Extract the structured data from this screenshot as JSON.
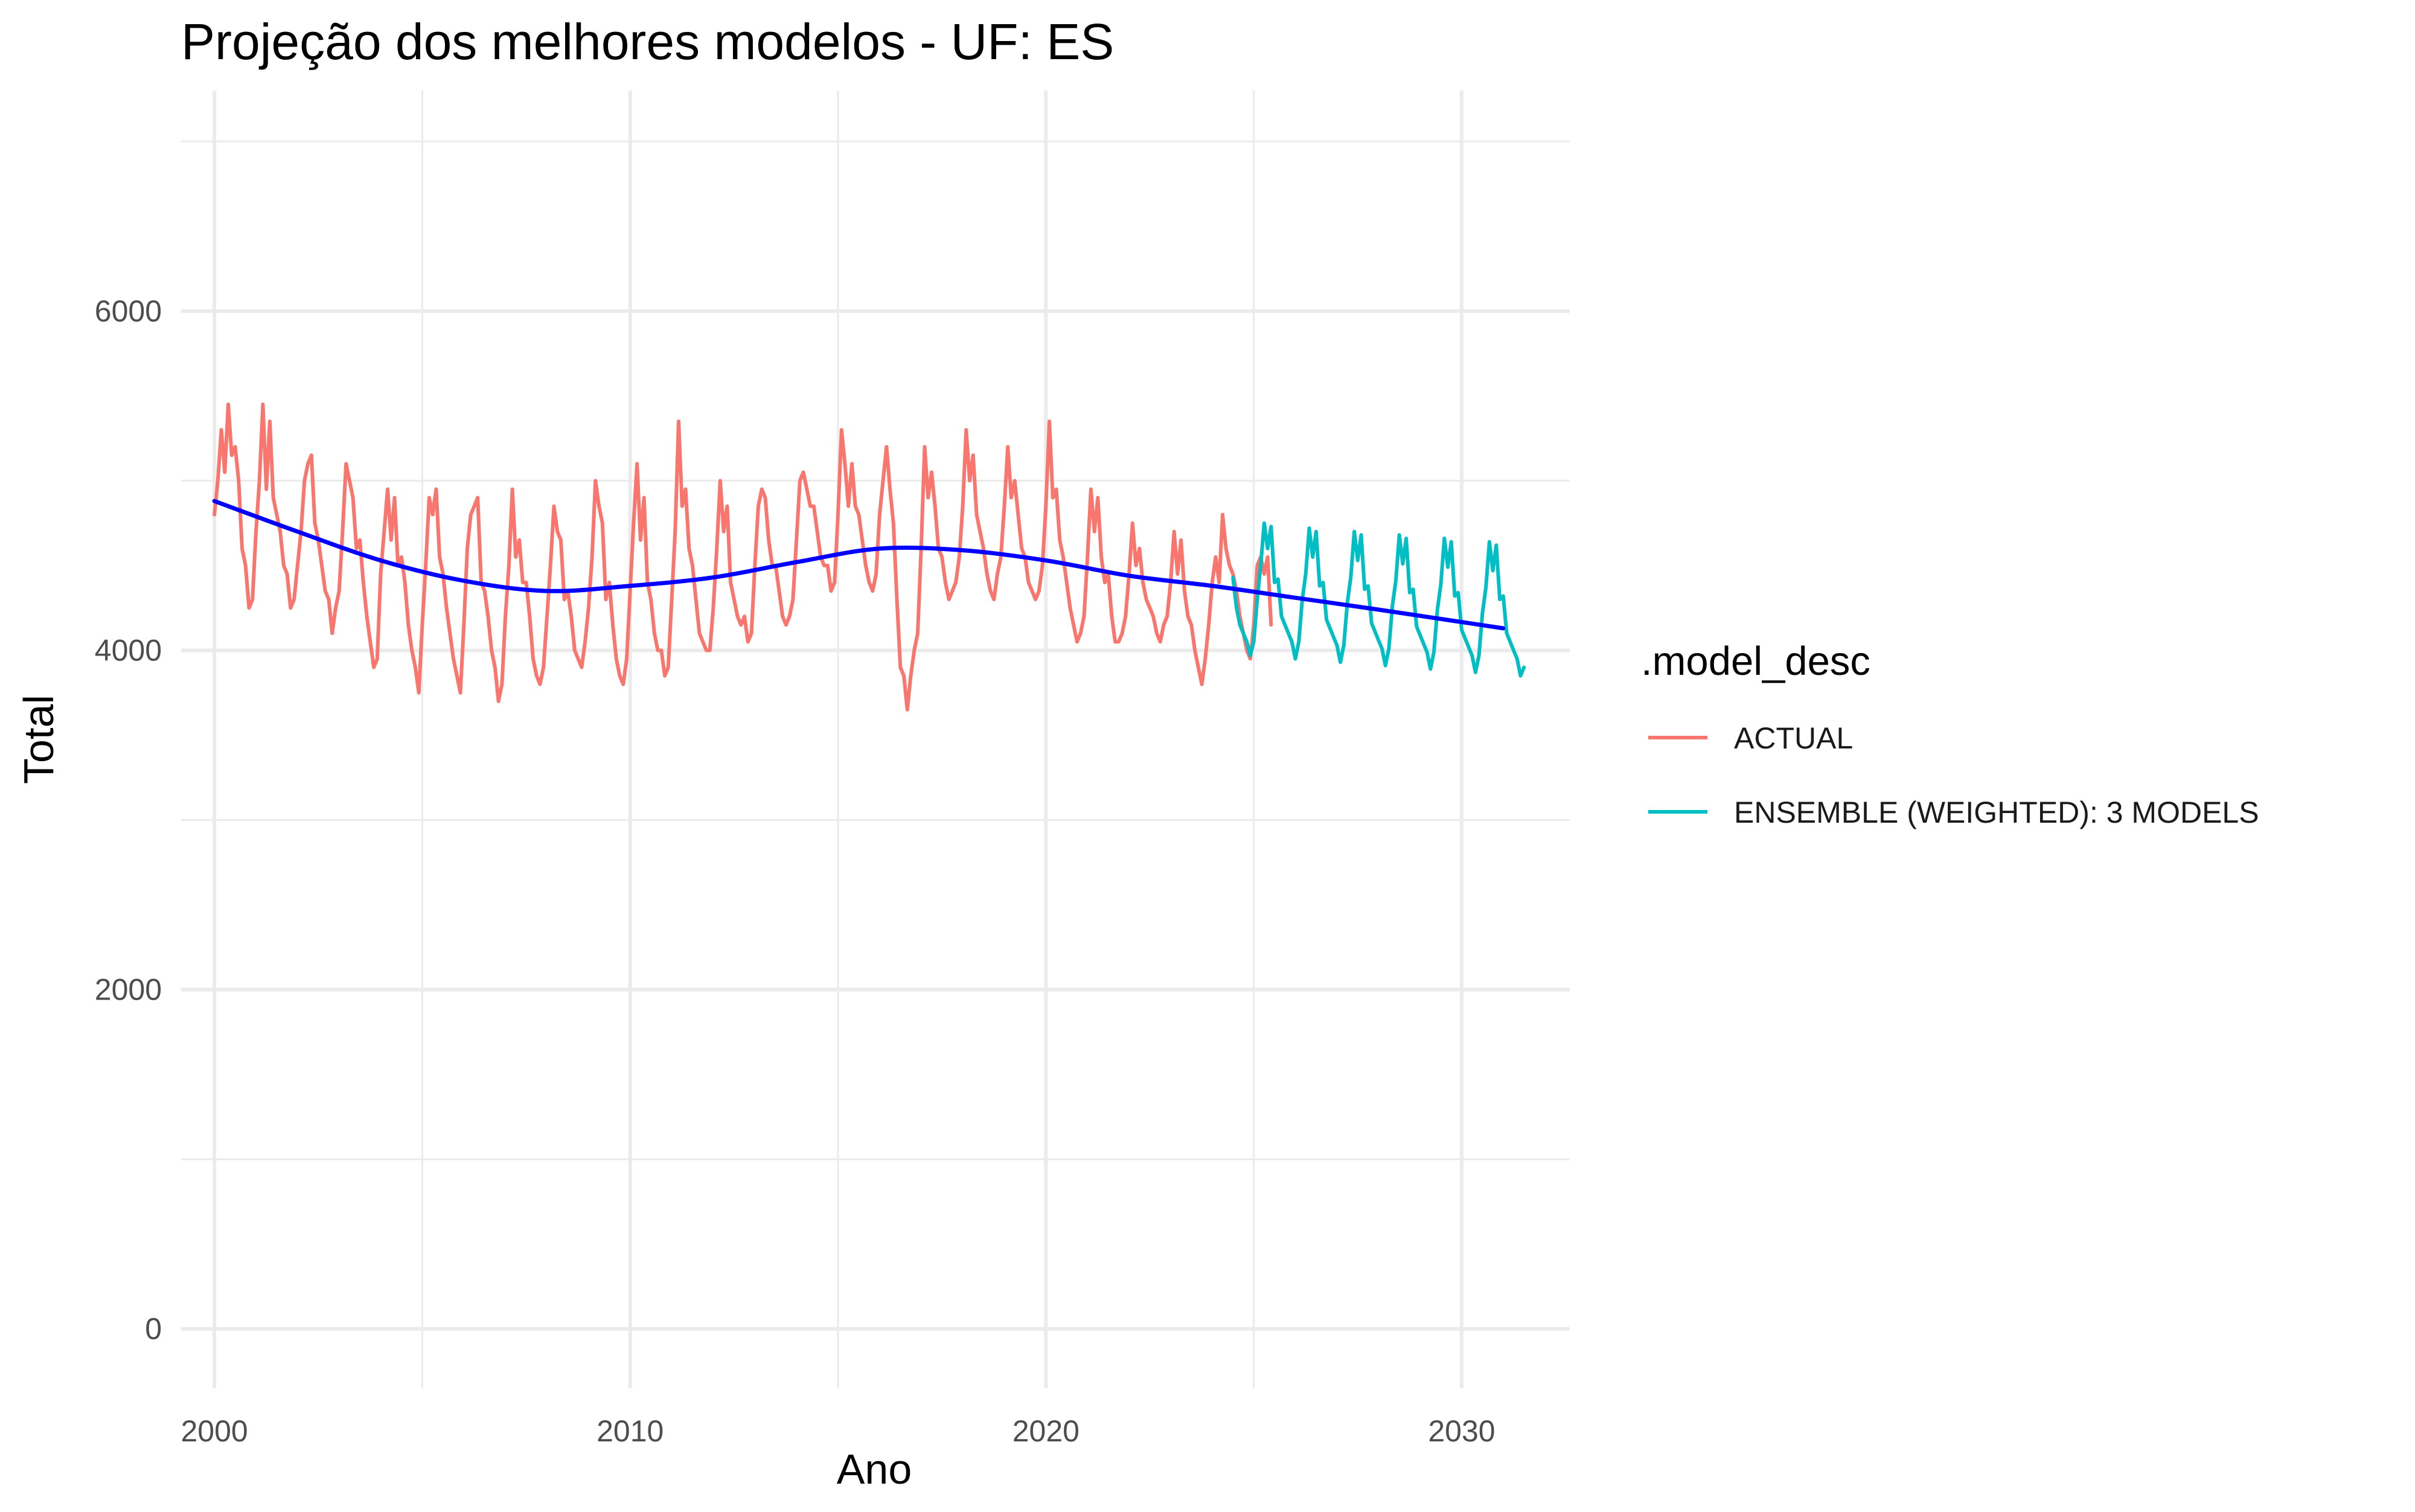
{
  "chart_data": {
    "type": "line",
    "title": "Projeção dos melhores modelos - UF: ES",
    "xlabel": "Ano",
    "ylabel": "Total",
    "xlim": [
      1999.2,
      2032.6
    ],
    "ylim": [
      -350,
      7300
    ],
    "x_ticks": [
      2000,
      2010,
      2020,
      2030
    ],
    "y_ticks": [
      0,
      2000,
      4000,
      6000
    ],
    "grid": true,
    "legend": {
      "title": ".model_desc",
      "position": "right",
      "entries": [
        "ACTUAL",
        "ENSEMBLE (WEIGHTED): 3 MODELS"
      ]
    },
    "series": [
      {
        "name": "ACTUAL",
        "color": "#F8766D",
        "x_start": 2000.0,
        "x_step": 0.083333,
        "values": [
          4800,
          5000,
          5300,
          5050,
          5450,
          5150,
          5200,
          5000,
          4600,
          4500,
          4250,
          4300,
          4700,
          5000,
          5450,
          4950,
          5350,
          4900,
          4800,
          4700,
          4500,
          4450,
          4250,
          4300,
          4500,
          4700,
          5000,
          5100,
          5150,
          4750,
          4650,
          4500,
          4350,
          4300,
          4100,
          4250,
          4350,
          4700,
          5100,
          5000,
          4900,
          4600,
          4650,
          4400,
          4200,
          4050,
          3900,
          3950,
          4450,
          4700,
          4950,
          4650,
          4900,
          4500,
          4550,
          4400,
          4150,
          4000,
          3900,
          3750,
          4150,
          4500,
          4900,
          4800,
          4950,
          4550,
          4450,
          4250,
          4100,
          3950,
          3850,
          3750,
          4150,
          4600,
          4800,
          4850,
          4900,
          4400,
          4350,
          4200,
          4000,
          3900,
          3700,
          3800,
          4200,
          4500,
          4950,
          4550,
          4650,
          4400,
          4400,
          4200,
          3950,
          3850,
          3800,
          3900,
          4200,
          4500,
          4850,
          4700,
          4650,
          4300,
          4350,
          4200,
          4000,
          3950,
          3900,
          4050,
          4250,
          4550,
          5000,
          4850,
          4750,
          4300,
          4400,
          4150,
          3950,
          3850,
          3800,
          3950,
          4350,
          4750,
          5100,
          4650,
          4900,
          4400,
          4300,
          4100,
          4000,
          4000,
          3850,
          3900,
          4300,
          4700,
          5350,
          4850,
          4950,
          4600,
          4500,
          4300,
          4100,
          4050,
          4000,
          4000,
          4250,
          4600,
          5000,
          4700,
          4850,
          4400,
          4300,
          4200,
          4150,
          4200,
          4050,
          4100,
          4500,
          4850,
          4950,
          4900,
          4650,
          4500,
          4500,
          4350,
          4200,
          4150,
          4200,
          4300,
          4650,
          5000,
          5050,
          4950,
          4850,
          4850,
          4700,
          4550,
          4500,
          4500,
          4350,
          4400,
          4800,
          5300,
          5100,
          4850,
          5100,
          4850,
          4800,
          4650,
          4500,
          4400,
          4350,
          4450,
          4800,
          5000,
          5200,
          4950,
          4750,
          4300,
          3900,
          3850,
          3650,
          3850,
          4000,
          4100,
          4600,
          5200,
          4900,
          5050,
          4850,
          4600,
          4550,
          4400,
          4300,
          4350,
          4400,
          4550,
          4850,
          5300,
          5000,
          5150,
          4800,
          4700,
          4600,
          4450,
          4350,
          4300,
          4450,
          4550,
          4850,
          5200,
          4900,
          5000,
          4800,
          4600,
          4550,
          4400,
          4350,
          4300,
          4350,
          4500,
          4850,
          5350,
          4900,
          4950,
          4650,
          4550,
          4400,
          4250,
          4150,
          4050,
          4100,
          4200,
          4550,
          4950,
          4700,
          4900,
          4550,
          4400,
          4450,
          4200,
          4050,
          4050,
          4100,
          4200,
          4450,
          4750,
          4500,
          4600,
          4400,
          4300,
          4250,
          4200,
          4100,
          4050,
          4150,
          4200,
          4400,
          4700,
          4450,
          4650,
          4350,
          4200,
          4150,
          4000,
          3900,
          3800,
          3950,
          4150,
          4400,
          4550,
          4400,
          4800,
          4600,
          4500,
          4450,
          4350,
          4200,
          4100,
          4000,
          3950,
          4150,
          4500,
          4550,
          4450,
          4550,
          4150
        ]
      },
      {
        "name": "ENSEMBLE (WEIGHTED): 3 MODELS",
        "color": "#00BFC4",
        "x_start": 2024.5,
        "x_step": 0.083333,
        "values": [
          4430,
          4250,
          4150,
          4100,
          4050,
          3970,
          4050,
          4300,
          4500,
          4750,
          4600,
          4730,
          4400,
          4420,
          4200,
          4150,
          4100,
          4050,
          3950,
          4050,
          4300,
          4450,
          4720,
          4550,
          4700,
          4380,
          4400,
          4180,
          4130,
          4080,
          4030,
          3930,
          4030,
          4280,
          4430,
          4700,
          4530,
          4680,
          4360,
          4380,
          4160,
          4110,
          4060,
          4010,
          3910,
          4010,
          4260,
          4410,
          4680,
          4510,
          4660,
          4340,
          4360,
          4140,
          4090,
          4040,
          3990,
          3890,
          3990,
          4240,
          4390,
          4660,
          4490,
          4640,
          4320,
          4340,
          4120,
          4070,
          4020,
          3970,
          3870,
          3970,
          4220,
          4370,
          4640,
          4470,
          4620,
          4300,
          4320,
          4100,
          4050,
          4000,
          3950,
          3850,
          3900
        ]
      },
      {
        "name": "",
        "color": "#0000FF",
        "x": [
          2000,
          2002,
          2004,
          2006,
          2008,
          2010,
          2012,
          2014,
          2016,
          2018,
          2020,
          2022,
          2024,
          2026,
          2028,
          2031
        ],
        "values": [
          4880,
          4700,
          4530,
          4410,
          4350,
          4380,
          4430,
          4520,
          4600,
          4590,
          4530,
          4440,
          4380,
          4310,
          4240,
          4130
        ]
      }
    ]
  }
}
